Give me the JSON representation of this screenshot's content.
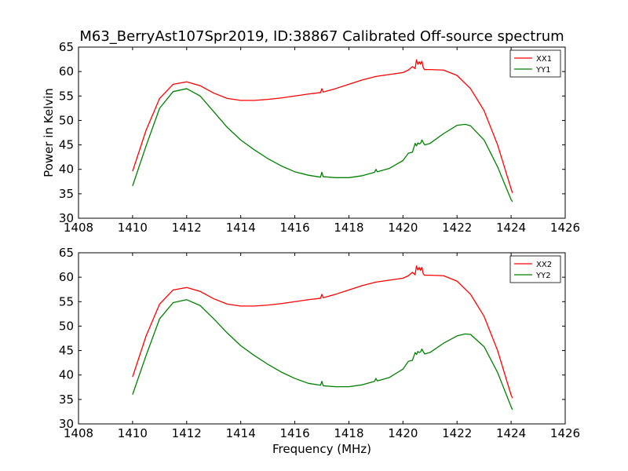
{
  "figure": {
    "title": "M63_BerryAst107Spr2019, ID:38867 Calibrated Off-source spectrum"
  },
  "chart_data": [
    {
      "type": "line",
      "title": "M63_BerryAst107Spr2019, ID:38867 Calibrated Off-source spectrum",
      "xlabel": "",
      "ylabel": "Power in Kelvin",
      "xlim": [
        1408,
        1426
      ],
      "ylim": [
        30,
        65
      ],
      "xticks": [
        1408,
        1410,
        1412,
        1414,
        1416,
        1418,
        1420,
        1422,
        1424,
        1426
      ],
      "yticks": [
        30,
        35,
        40,
        45,
        50,
        55,
        60,
        65
      ],
      "legend_position": "top-right",
      "grid": false,
      "series": [
        {
          "name": "XX1",
          "color": "#ff0000",
          "x": [
            1410.0,
            1410.5,
            1411.0,
            1411.5,
            1412.0,
            1412.5,
            1413.0,
            1413.5,
            1414.0,
            1414.5,
            1415.0,
            1415.5,
            1416.0,
            1416.5,
            1416.95,
            1417.0,
            1417.05,
            1417.5,
            1418.0,
            1418.5,
            1419.0,
            1419.5,
            1420.0,
            1420.2,
            1420.35,
            1420.45,
            1420.5,
            1420.55,
            1420.6,
            1420.65,
            1420.7,
            1420.75,
            1420.8,
            1421.0,
            1421.5,
            1422.0,
            1422.5,
            1423.0,
            1423.5,
            1424.0,
            1424.05
          ],
          "y": [
            39.6,
            48.0,
            54.5,
            57.4,
            57.9,
            57.1,
            55.6,
            54.5,
            54.1,
            54.1,
            54.3,
            54.6,
            55.0,
            55.4,
            55.7,
            56.5,
            55.8,
            56.5,
            57.4,
            58.3,
            59.0,
            59.4,
            59.8,
            60.3,
            61.0,
            60.6,
            62.4,
            61.5,
            62.0,
            61.5,
            62.1,
            60.8,
            60.4,
            60.4,
            60.3,
            59.2,
            56.5,
            52.0,
            45.0,
            36.0,
            35.2
          ]
        },
        {
          "name": "YY1",
          "color": "#008000",
          "x": [
            1410.0,
            1410.5,
            1411.0,
            1411.5,
            1412.0,
            1412.5,
            1413.0,
            1413.5,
            1414.0,
            1414.5,
            1415.0,
            1415.5,
            1416.0,
            1416.5,
            1416.95,
            1417.0,
            1417.05,
            1417.5,
            1418.0,
            1418.5,
            1418.95,
            1419.0,
            1419.05,
            1419.5,
            1420.0,
            1420.2,
            1420.35,
            1420.45,
            1420.5,
            1420.55,
            1420.6,
            1420.65,
            1420.7,
            1420.8,
            1421.0,
            1421.5,
            1422.0,
            1422.3,
            1422.5,
            1423.0,
            1423.5,
            1424.0,
            1424.05
          ],
          "y": [
            36.6,
            44.8,
            52.5,
            55.9,
            56.5,
            55.0,
            51.8,
            48.6,
            46.0,
            44.0,
            42.2,
            40.7,
            39.5,
            38.8,
            38.4,
            39.4,
            38.5,
            38.3,
            38.3,
            38.7,
            39.4,
            40.0,
            39.5,
            40.2,
            41.8,
            43.3,
            43.5,
            45.3,
            44.8,
            45.4,
            45.2,
            45.3,
            46.0,
            45.0,
            45.3,
            47.3,
            49.0,
            49.2,
            48.9,
            46.0,
            40.5,
            33.8,
            33.4
          ]
        }
      ]
    },
    {
      "type": "line",
      "title": "",
      "xlabel": "Frequency (MHz)",
      "ylabel": "",
      "xlim": [
        1408,
        1426
      ],
      "ylim": [
        30,
        65
      ],
      "xticks": [
        1408,
        1410,
        1412,
        1414,
        1416,
        1418,
        1420,
        1422,
        1424,
        1426
      ],
      "yticks": [
        30,
        35,
        40,
        45,
        50,
        55,
        60,
        65
      ],
      "legend_position": "top-right",
      "grid": false,
      "series": [
        {
          "name": "XX2",
          "color": "#ff0000",
          "x": [
            1410.0,
            1410.5,
            1411.0,
            1411.5,
            1412.0,
            1412.5,
            1413.0,
            1413.5,
            1414.0,
            1414.5,
            1415.0,
            1415.5,
            1416.0,
            1416.5,
            1416.95,
            1417.0,
            1417.05,
            1417.5,
            1418.0,
            1418.5,
            1419.0,
            1419.5,
            1420.0,
            1420.2,
            1420.35,
            1420.45,
            1420.5,
            1420.55,
            1420.6,
            1420.65,
            1420.7,
            1420.75,
            1420.8,
            1421.0,
            1421.5,
            1422.0,
            1422.5,
            1423.0,
            1423.5,
            1424.0,
            1424.05
          ],
          "y": [
            39.6,
            48.0,
            54.5,
            57.4,
            57.9,
            57.1,
            55.6,
            54.5,
            54.1,
            54.1,
            54.3,
            54.6,
            55.0,
            55.4,
            55.7,
            56.5,
            55.8,
            56.5,
            57.4,
            58.3,
            59.0,
            59.4,
            59.8,
            60.3,
            61.0,
            60.5,
            62.3,
            61.5,
            62.0,
            61.4,
            62.0,
            60.7,
            60.4,
            60.4,
            60.3,
            59.2,
            56.5,
            52.0,
            45.0,
            35.9,
            35.3
          ]
        },
        {
          "name": "YY2",
          "color": "#008000",
          "x": [
            1410.0,
            1410.5,
            1411.0,
            1411.5,
            1412.0,
            1412.5,
            1413.0,
            1413.5,
            1414.0,
            1414.5,
            1415.0,
            1415.5,
            1416.0,
            1416.5,
            1416.95,
            1417.0,
            1417.05,
            1417.5,
            1418.0,
            1418.5,
            1418.95,
            1419.0,
            1419.05,
            1419.5,
            1420.0,
            1420.2,
            1420.35,
            1420.45,
            1420.5,
            1420.55,
            1420.6,
            1420.65,
            1420.7,
            1420.8,
            1421.0,
            1421.5,
            1422.0,
            1422.3,
            1422.5,
            1423.0,
            1423.5,
            1424.0,
            1424.05
          ],
          "y": [
            36.0,
            44.0,
            51.5,
            54.8,
            55.4,
            54.2,
            51.5,
            48.6,
            46.0,
            44.0,
            42.2,
            40.6,
            39.3,
            38.3,
            37.9,
            38.7,
            37.8,
            37.6,
            37.6,
            38.0,
            38.7,
            39.3,
            38.8,
            39.5,
            41.2,
            42.8,
            43.0,
            44.6,
            44.2,
            44.8,
            44.6,
            44.7,
            45.3,
            44.3,
            44.6,
            46.5,
            48.0,
            48.4,
            48.3,
            45.8,
            40.5,
            33.5,
            32.9
          ]
        }
      ]
    }
  ]
}
